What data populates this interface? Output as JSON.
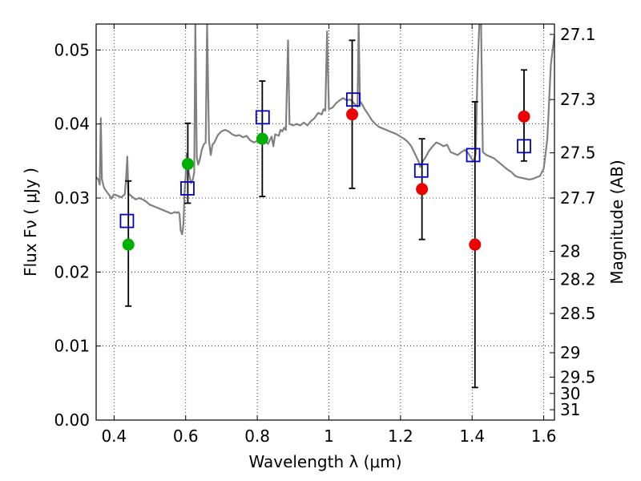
{
  "chart_data": {
    "type": "scatter",
    "title": "",
    "xlabel": "Wavelength  λ (μm)",
    "ylabel": "Flux  Fν  ( μJy )",
    "ylabel_right": "Magnitude (AB)",
    "xlim": [
      0.35,
      1.63
    ],
    "ylim": [
      0.0,
      0.0535
    ],
    "x_ticks": [
      0.4,
      0.6,
      0.8,
      1.0,
      1.2,
      1.4,
      1.6
    ],
    "x_tick_labels": [
      "0.4",
      "0.6",
      "0.8",
      "1",
      "1.2",
      "1.4",
      "1.6"
    ],
    "y_ticks": [
      0.0,
      0.01,
      0.02,
      0.03,
      0.04,
      0.05
    ],
    "y_tick_labels": [
      "0.00",
      "0.01",
      "0.02",
      "0.03",
      "0.04",
      "0.05"
    ],
    "right_ticks": [
      {
        "label": "27.1",
        "flux": 0.0521
      },
      {
        "label": "27.3",
        "flux": 0.0433
      },
      {
        "label": "27.5",
        "flux": 0.0361
      },
      {
        "label": "27.7",
        "flux": 0.03
      },
      {
        "label": "28",
        "flux": 0.0228
      },
      {
        "label": "28.2",
        "flux": 0.019
      },
      {
        "label": "28.5",
        "flux": 0.0144
      },
      {
        "label": "29",
        "flux": 0.0091
      },
      {
        "label": "29.5",
        "flux": 0.0058
      },
      {
        "label": "30",
        "flux": 0.0036
      },
      {
        "label": "31",
        "flux": 0.0014
      }
    ],
    "grid": true,
    "spectrum": {
      "color": "#808080",
      "points": [
        [
          0.35,
          0.0328
        ],
        [
          0.356,
          0.0325
        ],
        [
          0.36,
          0.0318
        ],
        [
          0.363,
          0.0408
        ],
        [
          0.366,
          0.0325
        ],
        [
          0.372,
          0.0314
        ],
        [
          0.38,
          0.0308
        ],
        [
          0.388,
          0.0303
        ],
        [
          0.392,
          0.0299
        ],
        [
          0.4,
          0.0305
        ],
        [
          0.41,
          0.0303
        ],
        [
          0.42,
          0.0301
        ],
        [
          0.43,
          0.0305
        ],
        [
          0.433,
          0.0322
        ],
        [
          0.437,
          0.0356
        ],
        [
          0.44,
          0.0306
        ],
        [
          0.45,
          0.0302
        ],
        [
          0.46,
          0.0298
        ],
        [
          0.47,
          0.03
        ],
        [
          0.48,
          0.0298
        ],
        [
          0.49,
          0.0295
        ],
        [
          0.5,
          0.0291
        ],
        [
          0.51,
          0.0289
        ],
        [
          0.52,
          0.0287
        ],
        [
          0.53,
          0.0285
        ],
        [
          0.54,
          0.0283
        ],
        [
          0.55,
          0.0281
        ],
        [
          0.56,
          0.0279
        ],
        [
          0.57,
          0.0281
        ],
        [
          0.575,
          0.028
        ],
        [
          0.58,
          0.0281
        ],
        [
          0.583,
          0.0278
        ],
        [
          0.586,
          0.0256
        ],
        [
          0.59,
          0.0251
        ],
        [
          0.594,
          0.0265
        ],
        [
          0.597,
          0.031
        ],
        [
          0.6,
          0.033
        ],
        [
          0.603,
          0.036
        ],
        [
          0.606,
          0.035
        ],
        [
          0.609,
          0.0334
        ],
        [
          0.615,
          0.032
        ],
        [
          0.62,
          0.0325
        ],
        [
          0.624,
          0.0335
        ],
        [
          0.627,
          0.0535
        ],
        [
          0.631,
          0.0355
        ],
        [
          0.635,
          0.0345
        ],
        [
          0.64,
          0.0353
        ],
        [
          0.645,
          0.0365
        ],
        [
          0.65,
          0.0372
        ],
        [
          0.656,
          0.0375
        ],
        [
          0.66,
          0.0535
        ],
        [
          0.665,
          0.0378
        ],
        [
          0.67,
          0.0358
        ],
        [
          0.675,
          0.0372
        ],
        [
          0.68,
          0.0375
        ],
        [
          0.69,
          0.0385
        ],
        [
          0.7,
          0.039
        ],
        [
          0.71,
          0.0392
        ],
        [
          0.72,
          0.039
        ],
        [
          0.73,
          0.0386
        ],
        [
          0.74,
          0.0384
        ],
        [
          0.75,
          0.0385
        ],
        [
          0.76,
          0.0382
        ],
        [
          0.77,
          0.0384
        ],
        [
          0.78,
          0.0378
        ],
        [
          0.79,
          0.0375
        ],
        [
          0.8,
          0.0377
        ],
        [
          0.81,
          0.0378
        ],
        [
          0.82,
          0.0379
        ],
        [
          0.83,
          0.0373
        ],
        [
          0.84,
          0.0383
        ],
        [
          0.845,
          0.037
        ],
        [
          0.85,
          0.0386
        ],
        [
          0.86,
          0.0384
        ],
        [
          0.865,
          0.0392
        ],
        [
          0.87,
          0.039
        ],
        [
          0.875,
          0.0395
        ],
        [
          0.88,
          0.0392
        ],
        [
          0.886,
          0.0513
        ],
        [
          0.89,
          0.04
        ],
        [
          0.9,
          0.0398
        ],
        [
          0.91,
          0.04
        ],
        [
          0.92,
          0.0398
        ],
        [
          0.93,
          0.0402
        ],
        [
          0.94,
          0.0398
        ],
        [
          0.95,
          0.0404
        ],
        [
          0.96,
          0.0408
        ],
        [
          0.97,
          0.0415
        ],
        [
          0.98,
          0.0413
        ],
        [
          0.985,
          0.042
        ],
        [
          0.99,
          0.0418
        ],
        [
          0.995,
          0.0525
        ],
        [
          1.0,
          0.042
        ],
        [
          1.01,
          0.0422
        ],
        [
          1.02,
          0.0428
        ],
        [
          1.03,
          0.0432
        ],
        [
          1.04,
          0.0435
        ],
        [
          1.05,
          0.0432
        ],
        [
          1.06,
          0.0433
        ],
        [
          1.07,
          0.0428
        ],
        [
          1.08,
          0.0423
        ],
        [
          1.083,
          0.0535
        ],
        [
          1.087,
          0.0427
        ],
        [
          1.09,
          0.0429
        ],
        [
          1.1,
          0.042
        ],
        [
          1.11,
          0.0413
        ],
        [
          1.12,
          0.0405
        ],
        [
          1.13,
          0.04
        ],
        [
          1.14,
          0.0396
        ],
        [
          1.15,
          0.0394
        ],
        [
          1.16,
          0.0392
        ],
        [
          1.17,
          0.039
        ],
        [
          1.18,
          0.0388
        ],
        [
          1.19,
          0.0386
        ],
        [
          1.2,
          0.0383
        ],
        [
          1.21,
          0.038
        ],
        [
          1.22,
          0.0376
        ],
        [
          1.23,
          0.037
        ],
        [
          1.24,
          0.036
        ],
        [
          1.25,
          0.035
        ],
        [
          1.255,
          0.0342
        ],
        [
          1.26,
          0.0348
        ],
        [
          1.27,
          0.0355
        ],
        [
          1.28,
          0.0364
        ],
        [
          1.29,
          0.037
        ],
        [
          1.3,
          0.0375
        ],
        [
          1.31,
          0.0373
        ],
        [
          1.32,
          0.037
        ],
        [
          1.33,
          0.0372
        ],
        [
          1.34,
          0.0362
        ],
        [
          1.35,
          0.036
        ],
        [
          1.36,
          0.0358
        ],
        [
          1.37,
          0.0362
        ],
        [
          1.38,
          0.0365
        ],
        [
          1.39,
          0.036
        ],
        [
          1.4,
          0.0352
        ],
        [
          1.405,
          0.035
        ],
        [
          1.41,
          0.036
        ],
        [
          1.415,
          0.047
        ],
        [
          1.42,
          0.0535
        ],
        [
          1.425,
          0.0535
        ],
        [
          1.43,
          0.0362
        ],
        [
          1.44,
          0.0358
        ],
        [
          1.45,
          0.0356
        ],
        [
          1.46,
          0.0354
        ],
        [
          1.47,
          0.035
        ],
        [
          1.48,
          0.0346
        ],
        [
          1.49,
          0.0342
        ],
        [
          1.5,
          0.0338
        ],
        [
          1.51,
          0.0335
        ],
        [
          1.52,
          0.033
        ],
        [
          1.53,
          0.0328
        ],
        [
          1.54,
          0.0327
        ],
        [
          1.55,
          0.0326
        ],
        [
          1.56,
          0.0325
        ],
        [
          1.57,
          0.0326
        ],
        [
          1.58,
          0.0328
        ],
        [
          1.59,
          0.033
        ],
        [
          1.6,
          0.034
        ],
        [
          1.61,
          0.038
        ],
        [
          1.62,
          0.048
        ],
        [
          1.63,
          0.052
        ]
      ]
    },
    "observed_blue": [
      {
        "x": 0.44,
        "y": 0.0237,
        "err_low": 0.0083,
        "err_high": 0.0086
      },
      {
        "x": 0.606,
        "y": 0.0346,
        "err_low": 0.0053,
        "err_high": 0.0055
      },
      {
        "x": 0.814,
        "y": 0.038,
        "err_low": 0.0078,
        "err_high": 0.0078
      }
    ],
    "observed_red": [
      {
        "x": 1.065,
        "y": 0.0413,
        "err_low": 0.01,
        "err_high": 0.01
      },
      {
        "x": 1.26,
        "y": 0.0312,
        "err_low": 0.0068,
        "err_high": 0.0068
      },
      {
        "x": 1.408,
        "y": 0.0237,
        "err_low": 0.0193,
        "err_high": 0.0193
      },
      {
        "x": 1.545,
        "y": 0.041,
        "err_low": 0.006,
        "err_high": 0.0063
      }
    ],
    "model_photometry": [
      {
        "x": 0.436,
        "y": 0.0269
      },
      {
        "x": 0.605,
        "y": 0.0313
      },
      {
        "x": 0.815,
        "y": 0.0409
      },
      {
        "x": 1.068,
        "y": 0.0433
      },
      {
        "x": 1.258,
        "y": 0.0337
      },
      {
        "x": 1.403,
        "y": 0.0358
      },
      {
        "x": 1.545,
        "y": 0.037
      }
    ],
    "colors": {
      "green_points": "#00b000",
      "red_points": "#ee0000",
      "model_squares": "#0000cc",
      "errorbars": "#000000"
    }
  }
}
